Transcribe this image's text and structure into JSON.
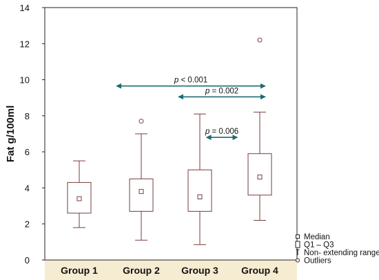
{
  "chart_data": {
    "type": "box",
    "title": "",
    "xlabel": "",
    "ylabel": "Fat g/100ml",
    "ylim": [
      0,
      14
    ],
    "yticks": [
      0,
      2,
      4,
      6,
      8,
      10,
      12,
      14
    ],
    "grid": false,
    "categories": [
      "Group 1",
      "Group 2",
      "Group 3",
      "Group 4"
    ],
    "boxes": [
      {
        "group": "Group 1",
        "whisker_low": 1.8,
        "q1": 2.6,
        "median": 3.4,
        "q3": 4.3,
        "whisker_high": 5.5,
        "outliers": []
      },
      {
        "group": "Group 2",
        "whisker_low": 1.1,
        "q1": 2.7,
        "median": 3.8,
        "q3": 4.5,
        "whisker_high": 7.0,
        "outliers": [
          7.7
        ]
      },
      {
        "group": "Group 3",
        "whisker_low": 0.85,
        "q1": 2.7,
        "median": 3.5,
        "q3": 5.0,
        "whisker_high": 8.1,
        "outliers": []
      },
      {
        "group": "Group 4",
        "whisker_low": 2.2,
        "q1": 3.6,
        "median": 4.6,
        "q3": 5.9,
        "whisker_high": 8.2,
        "outliers": [
          12.2
        ]
      }
    ],
    "comparisons": [
      {
        "p_label": "p",
        "p_value": "< 0.001",
        "y": 9.65,
        "x_from": 0.6,
        "x_to": 3.0
      },
      {
        "p_label": "p",
        "p_value": "= 0.002",
        "y": 9.05,
        "x_from": 1.6,
        "x_to": 3.0
      },
      {
        "p_label": "p",
        "p_value": "= 0.006",
        "y": 6.8,
        "x_from": 2.05,
        "x_to": 2.55
      }
    ],
    "legend": {
      "placement": "bottom-right",
      "items": [
        {
          "symbol": "small-square",
          "label": "Median"
        },
        {
          "symbol": "box",
          "label": "Q1 – Q3"
        },
        {
          "symbol": "whisker",
          "label": "Non- extending range"
        },
        {
          "symbol": "circle",
          "label": "Outliers"
        }
      ]
    },
    "colors": {
      "box": "#7a3b3b",
      "arrow": "#1b6b73",
      "axis_band": "#f6ecd2",
      "axis": "#222222"
    }
  }
}
